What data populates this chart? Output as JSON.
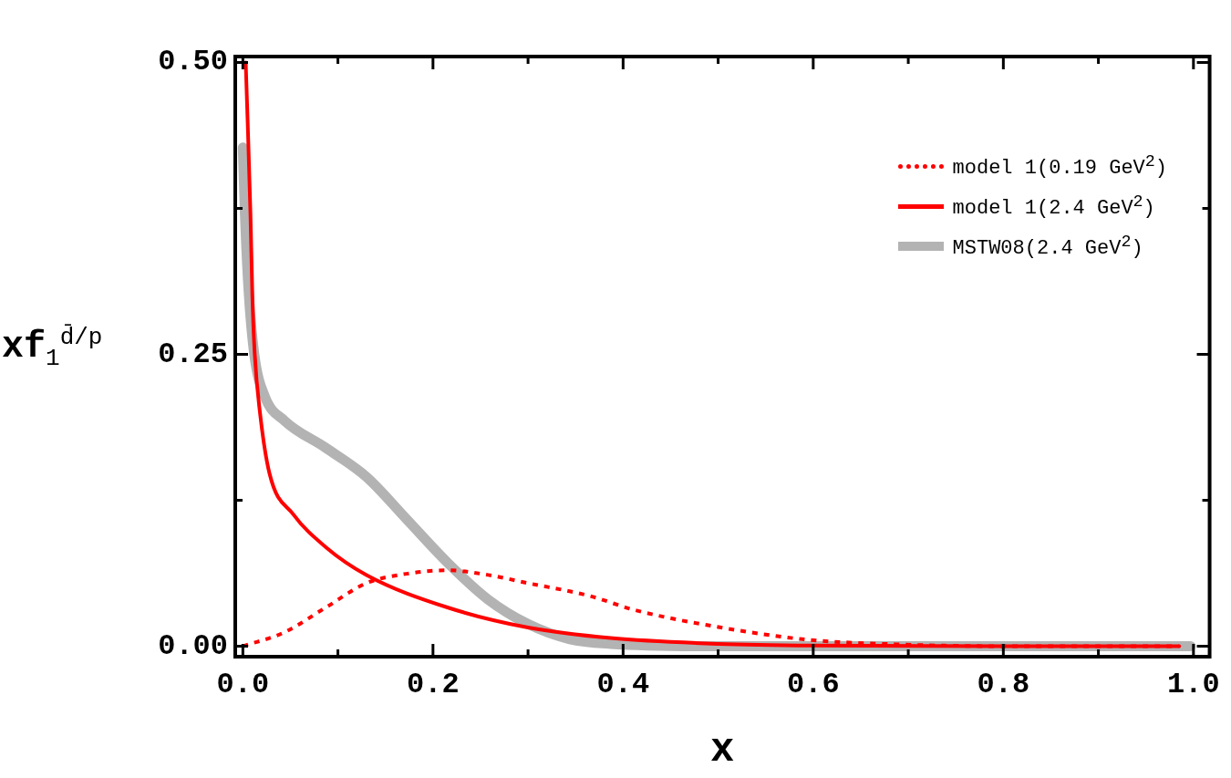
{
  "chart_data": {
    "type": "line",
    "xlabel": "x",
    "ylabel": "xf$_{1}$$^{d̄/p}$",
    "xlim": [
      -0.008,
      1.017
    ],
    "ylim": [
      -0.009,
      0.505
    ],
    "xticks": [
      {
        "value": 0,
        "label": "0.0"
      },
      {
        "value": 0.1,
        "label": null
      },
      {
        "value": 0.2,
        "label": "0.2"
      },
      {
        "value": 0.3,
        "label": null
      },
      {
        "value": 0.4,
        "label": "0.4"
      },
      {
        "value": 0.5,
        "label": null
      },
      {
        "value": 0.6,
        "label": "0.6"
      },
      {
        "value": 0.7,
        "label": null
      },
      {
        "value": 0.8,
        "label": "0.8"
      },
      {
        "value": 0.9,
        "label": null
      },
      {
        "value": 1,
        "label": "1.0"
      }
    ],
    "yticks": [
      {
        "value": 0,
        "label": "0.00"
      },
      {
        "value": 0.125,
        "label": null
      },
      {
        "value": 0.25,
        "label": "0.25"
      },
      {
        "value": 0.375,
        "label": null
      },
      {
        "value": 0.5,
        "label": "0.50"
      }
    ],
    "grid": false,
    "legend": "top right",
    "marker": "none",
    "series": [
      {
        "name": "MSTW08(2.4 GeV$^{2}$)",
        "color": "#b3b3b3",
        "line_style": "solid",
        "x": [
          0,
          0.002,
          0.006,
          0.012,
          0.023,
          0.044,
          0.087,
          0.13,
          0.172,
          0.216,
          0.258,
          0.3,
          0.344,
          0.387,
          0.5,
          0.6,
          0.7,
          0.8,
          0.9,
          0.997
        ],
        "values": [
          0.427,
          0.374,
          0.305,
          0.25,
          0.214,
          0.193,
          0.17,
          0.145,
          0.109,
          0.071,
          0.04,
          0.019,
          0.006,
          0.002,
          0,
          0,
          0,
          0,
          0,
          0
        ]
      },
      {
        "name": "model 1(0.19 GeV$^{2}$)",
        "color": "#ff0000",
        "line_style": "dotted",
        "x": [
          0,
          0.044,
          0.087,
          0.13,
          0.172,
          0.216,
          0.258,
          0.3,
          0.365,
          0.412,
          0.503,
          0.595,
          0.687,
          0.8,
          0.9,
          0.985
        ],
        "values": [
          0,
          0.012,
          0.033,
          0.054,
          0.062,
          0.065,
          0.061,
          0.054,
          0.043,
          0.031,
          0.016,
          0.0055,
          0.0016,
          0,
          0,
          0
        ]
      },
      {
        "name": "model 1(2.4 GeV$^{2}$)",
        "color": "#ff0000",
        "line_style": "solid",
        "x": [
          0.003,
          0.005,
          0.008,
          0.01,
          0.0125,
          0.018,
          0.028,
          0.053,
          0.087,
          0.13,
          0.216,
          0.3,
          0.387,
          0.5,
          0.6,
          0.8,
          0.985
        ],
        "values": [
          0.5,
          0.45,
          0.37,
          0.3,
          0.25,
          0.2,
          0.148,
          0.113,
          0.085,
          0.061,
          0.033,
          0.016,
          0.007,
          0.002,
          0.0005,
          0,
          0
        ]
      }
    ]
  }
}
